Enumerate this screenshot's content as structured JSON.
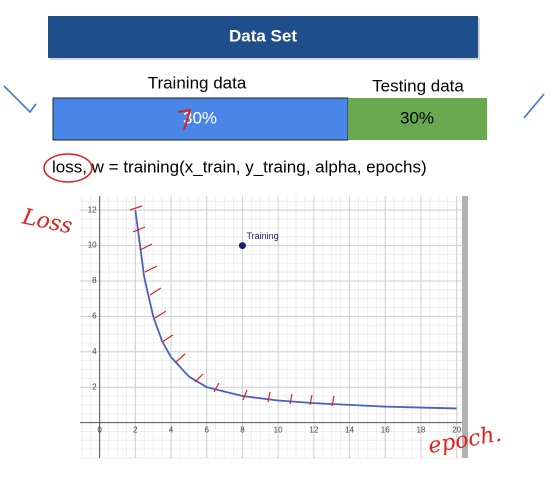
{
  "header": {
    "title": "Data Set"
  },
  "split": {
    "train_label": "Training data",
    "train_value": "30%",
    "test_label": "Testing data",
    "test_value": "30%"
  },
  "code": "loss, w = training(x_train, y_traing, alpha, epochs)",
  "chart_data": {
    "type": "line",
    "x": [
      2,
      2.5,
      3,
      3.5,
      4,
      5,
      6,
      8,
      10,
      12,
      14,
      16,
      18,
      20
    ],
    "series": [
      {
        "name": "loss",
        "color": "#4a5fc1",
        "values": [
          12,
          8.2,
          6,
          4.6,
          3.7,
          2.6,
          2.0,
          1.5,
          1.25,
          1.1,
          1.0,
          0.9,
          0.85,
          0.8
        ]
      }
    ],
    "points": [
      {
        "name": "Training",
        "x": 8,
        "y": 10,
        "color": "#1a1a7a"
      }
    ],
    "xlim": [
      -1.1,
      20.3
    ],
    "ylim": [
      -2,
      12.8
    ],
    "xticks": [
      0,
      2,
      4,
      6,
      8,
      10,
      12,
      14,
      16,
      18,
      20
    ],
    "yticks": [
      2,
      4,
      6,
      8,
      10,
      12
    ],
    "grid": true
  }
}
